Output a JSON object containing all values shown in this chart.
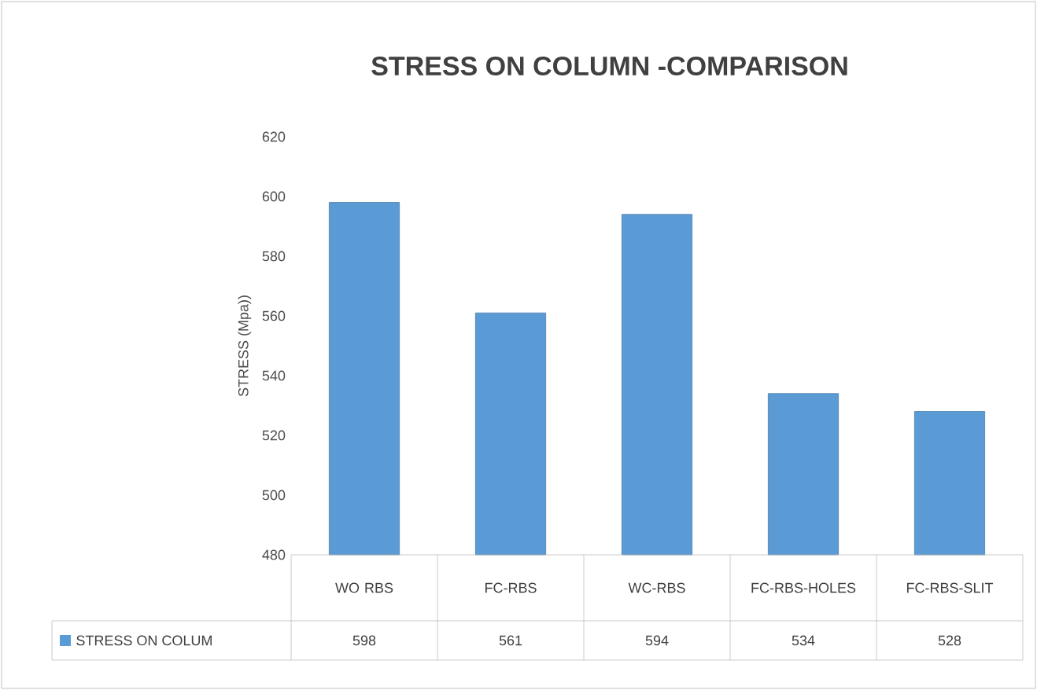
{
  "chart_data": {
    "type": "bar",
    "title": "STRESS ON COLUMN -COMPARISON",
    "ylabel": "STRESS (Mpa))",
    "categories": [
      "WO RBS",
      "FC-RBS",
      "WC-RBS",
      "FC-RBS-HOLES",
      "FC-RBS-SLIT"
    ],
    "series": [
      {
        "name": "STRESS ON COLUM",
        "color": "#5b9bd5",
        "values": [
          598,
          561,
          594,
          534,
          528
        ]
      }
    ],
    "ylim": [
      480,
      620
    ],
    "yticks": [
      480,
      500,
      520,
      540,
      560,
      580,
      600,
      620
    ],
    "data_labels": true,
    "legend": "bottom"
  }
}
